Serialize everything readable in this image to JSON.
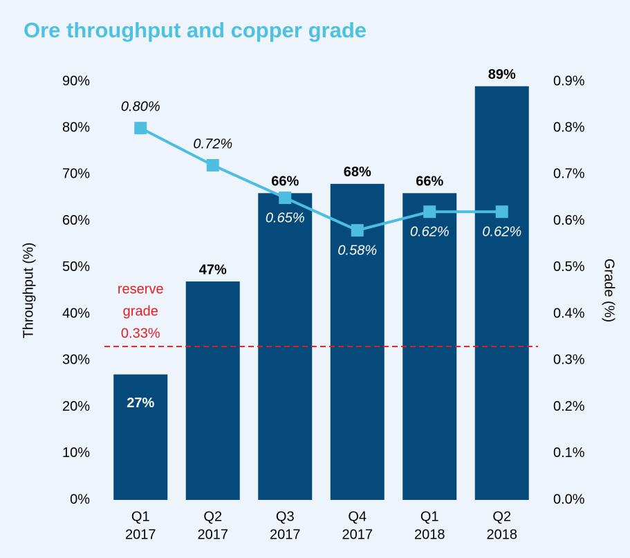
{
  "chart_data": {
    "type": "bar",
    "title": "Ore throughput and copper grade",
    "ylabel": "Throughput (%)",
    "y2label": "Grade (%)",
    "categories": [
      [
        "Q1",
        "2017"
      ],
      [
        "Q2",
        "2017"
      ],
      [
        "Q3",
        "2017"
      ],
      [
        "Q4",
        "2017"
      ],
      [
        "Q1",
        "2018"
      ],
      [
        "Q2",
        "2018"
      ]
    ],
    "series": [
      {
        "name": "Throughput",
        "type": "bar",
        "color": "#054a7b",
        "values": [
          27,
          47,
          66,
          68,
          66,
          89
        ],
        "value_labels": [
          "27%",
          "47%",
          "66%",
          "68%",
          "66%",
          "89%"
        ]
      },
      {
        "name": "Grade",
        "type": "line",
        "axis": "y2",
        "color": "#4dbde0",
        "values": [
          0.8,
          0.72,
          0.65,
          0.58,
          0.62,
          0.62
        ],
        "value_labels": [
          "0.80%",
          "0.72%",
          "0.65%",
          "0.58%",
          "0.62%",
          "0.62%"
        ]
      }
    ],
    "ylim": [
      0,
      90
    ],
    "yticks": [
      {
        "value": 0,
        "label": "0%"
      },
      {
        "value": 10,
        "label": "10%"
      },
      {
        "value": 20,
        "label": "20%"
      },
      {
        "value": 30,
        "label": "30%"
      },
      {
        "value": 40,
        "label": "40%"
      },
      {
        "value": 50,
        "label": "50%"
      },
      {
        "value": 60,
        "label": "60%"
      },
      {
        "value": 70,
        "label": "70%"
      },
      {
        "value": 80,
        "label": "80%"
      },
      {
        "value": 90,
        "label": "90%"
      }
    ],
    "y2lim": [
      0,
      0.9
    ],
    "y2ticks": [
      {
        "value": 0,
        "label": "0.0%"
      },
      {
        "value": 0.1,
        "label": "0.1%"
      },
      {
        "value": 0.2,
        "label": "0.2%"
      },
      {
        "value": 0.3,
        "label": "0.3%"
      },
      {
        "value": 0.4,
        "label": "0.4%"
      },
      {
        "value": 0.5,
        "label": "0.5%"
      },
      {
        "value": 0.6,
        "label": "0.6%"
      },
      {
        "value": 0.7,
        "label": "0.7%"
      },
      {
        "value": 0.8,
        "label": "0.8%"
      },
      {
        "value": 0.9,
        "label": "0.9%"
      }
    ],
    "reference_line": {
      "axis": "y2",
      "value": 0.33,
      "color": "#e02020",
      "label": [
        "reserve",
        "grade",
        "0.33%"
      ]
    }
  }
}
